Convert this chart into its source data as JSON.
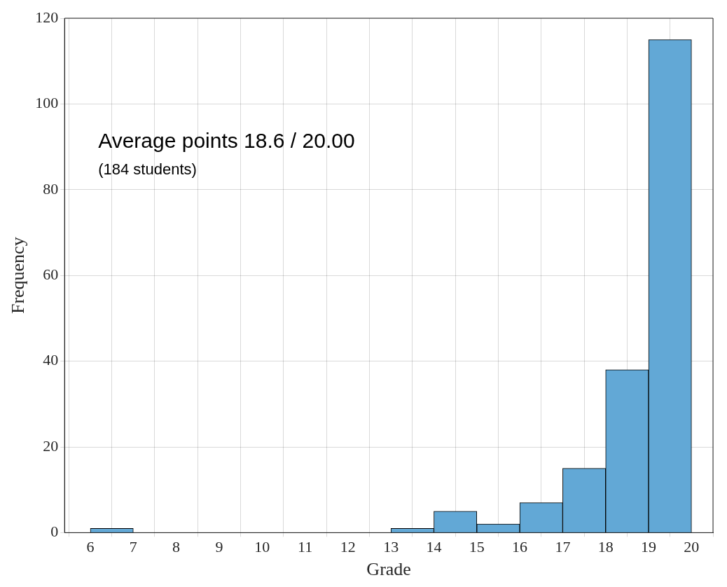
{
  "chart_data": {
    "type": "histogram",
    "xlabel": "Grade",
    "ylabel": "Frequency",
    "bins": [
      6,
      7,
      8,
      9,
      10,
      11,
      12,
      13,
      14,
      15,
      16,
      17,
      18,
      19,
      20
    ],
    "values": [
      1,
      0,
      0,
      0,
      0,
      0,
      0,
      1,
      5,
      2,
      7,
      15,
      38,
      115
    ],
    "color": "#62a8d6",
    "xlim": [
      5.4,
      20.5
    ],
    "xticks": [
      6,
      7,
      8,
      9,
      10,
      11,
      12,
      13,
      14,
      15,
      16,
      17,
      18,
      19,
      20
    ],
    "ylim": [
      0,
      120
    ],
    "yticks": [
      0,
      20,
      40,
      60,
      80,
      100,
      120
    ],
    "grid": true,
    "annotations": [
      "Average points 18.6 / 20.00",
      "(184 students)"
    ]
  }
}
